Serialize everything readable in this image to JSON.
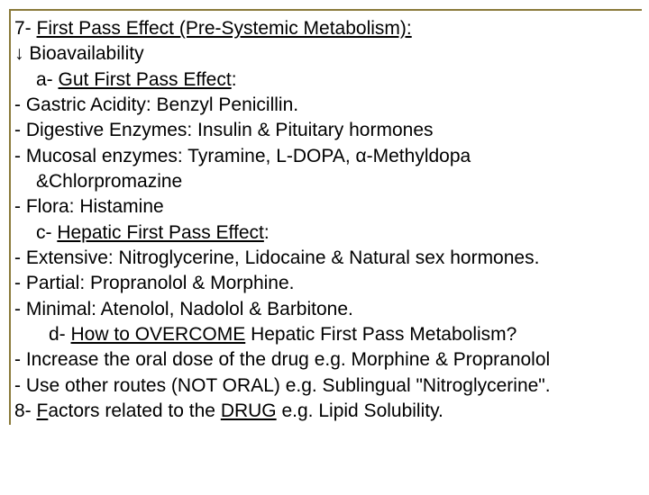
{
  "border_color": "#8a7a3a",
  "text_color": "#000000",
  "background_color": "#ffffff",
  "font_family": "Arial",
  "font_size_pt": 16,
  "lines": {
    "l1a": "7-",
    "l1b": "First Pass Effect (Pre-Systemic Metabolism):",
    "l2_arrow": "↓",
    "l2": " Bioavailability",
    "l3a": "a- ",
    "l3b": "Gut First Pass Effect",
    "l3c": ":",
    "l4": "- Gastric Acidity: Benzyl Penicillin.",
    "l5": "- Digestive Enzymes: Insulin & Pituitary hormones",
    "l6": "- Mucosal enzymes: Tyramine, L-DOPA, α-Methyldopa",
    "l7": "&Chlorpromazine",
    "l8": "- Flora: Histamine",
    "l9a": "c- ",
    "l9b": "Hepatic First Pass Effect",
    "l9c": ":",
    "l10": "- Extensive: Nitroglycerine, Lidocaine & Natural sex hormones.",
    "l11": "- Partial: Propranolol & Morphine.",
    "l12": "- Minimal: Atenolol, Nadolol & Barbitone.",
    "l13a": "d- ",
    "l13b": "How to OVERCOME",
    "l13c": " Hepatic First Pass Metabolism?",
    "l14": "- Increase the oral dose of the drug e.g. Morphine & Propranolol",
    "l15": "- Use other routes (NOT ORAL) e.g. Sublingual \"Nitroglycerine\".",
    "l16a": "8-",
    "l16b": "F",
    "l16c": "actors related to the ",
    "l16d": "DRUG",
    "l16e": " e.g. Lipid Solubility."
  }
}
